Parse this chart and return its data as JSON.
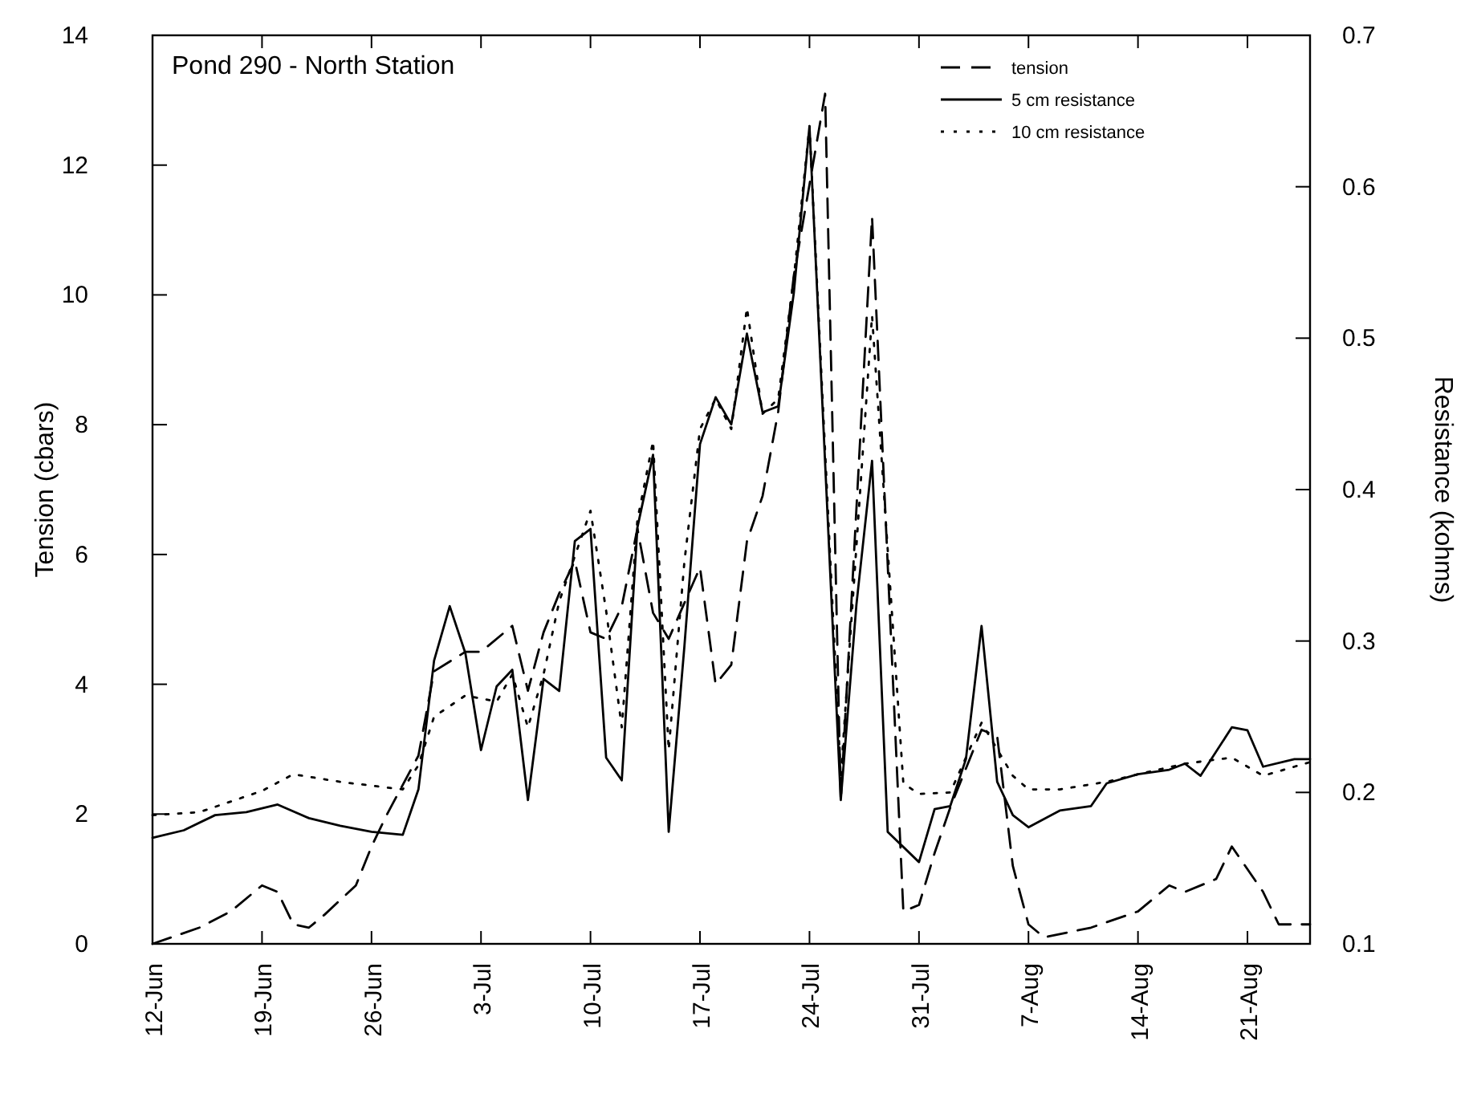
{
  "chart_data": {
    "type": "line",
    "title": "Pond 290 - North Station",
    "ylabel": "Tension (cbars)",
    "y2label": "Resistance (kohms)",
    "xlim": [
      "--06-12",
      "--08-25"
    ],
    "xticks": [
      {
        "value": "--06-12",
        "label": "12-Jun"
      },
      {
        "value": "--06-19",
        "label": "19-Jun"
      },
      {
        "value": "--06-26",
        "label": "26-Jun"
      },
      {
        "value": "--07-03",
        "label": "3-Jul"
      },
      {
        "value": "--07-10",
        "label": "10-Jul"
      },
      {
        "value": "--07-17",
        "label": "17-Jul"
      },
      {
        "value": "--07-24",
        "label": "24-Jul"
      },
      {
        "value": "--07-31",
        "label": "31-Jul"
      },
      {
        "value": "--08-07",
        "label": "7-Aug"
      },
      {
        "value": "--08-14",
        "label": "14-Aug"
      },
      {
        "value": "--08-21",
        "label": "21-Aug"
      }
    ],
    "ylim": [
      0,
      14
    ],
    "yticks": [
      0,
      2,
      4,
      6,
      8,
      10,
      12,
      14
    ],
    "y2lim": [
      0.1,
      0.7
    ],
    "y2ticks": [
      0.1,
      0.2,
      0.3,
      0.4,
      0.5,
      0.6,
      0.7
    ],
    "legend": "top right",
    "grid": false,
    "series": [
      {
        "name": "tension",
        "color": "#000000",
        "line_style": "dashed",
        "x": [
          "--06-12",
          "--06-15",
          "--06-17",
          "--06-19",
          "--06-20",
          "--06-21",
          "--06-22",
          "--06-23",
          "--06-25",
          "--06-26",
          "--06-27",
          "--06-29",
          "--06-30",
          "--07-02",
          "--07-03",
          "--07-05",
          "--07-06",
          "--07-07",
          "--07-08",
          "--07-09",
          "--07-10",
          "--07-11",
          "--07-12",
          "--07-13",
          "--07-14",
          "--07-15",
          "--07-17",
          "--07-18",
          "--07-19",
          "--07-20",
          "--07-21",
          "--07-22",
          "--07-23",
          "--07-25",
          "--07-26",
          "--07-28",
          "--07-30",
          "--07-31",
          "--08-01",
          "--08-02",
          "--08-04",
          "--08-05",
          "--08-06",
          "--08-07",
          "--08-08",
          "--08-09",
          "--08-11",
          "--08-14",
          "--08-16",
          "--08-17",
          "--08-19",
          "--08-20",
          "--08-22",
          "--08-23",
          "--08-25"
        ],
        "values": [
          0,
          0.25,
          0.5,
          0.9,
          0.8,
          0.3,
          0.25,
          0.45,
          0.9,
          1.5,
          2.0,
          2.9,
          4.2,
          4.5,
          4.5,
          4.9,
          3.9,
          4.8,
          5.4,
          5.9,
          4.8,
          4.7,
          5.2,
          6.4,
          5.1,
          4.7,
          5.8,
          4.0,
          4.3,
          6.2,
          6.9,
          8.2,
          10.3,
          13.1,
          2.2,
          11.2,
          0.5,
          0.6,
          1.4,
          2.1,
          3.3,
          3.2,
          1.2,
          0.3,
          0.1,
          0.15,
          0.25,
          0.5,
          0.9,
          0.8,
          1.0,
          1.5,
          0.8,
          0.3,
          0.3
        ]
      },
      {
        "name": "5 cm resistance",
        "color": "#000000",
        "line_style": "solid",
        "axis": "y2",
        "x": [
          "--06-12",
          "--06-14",
          "--06-16",
          "--06-18",
          "--06-20",
          "--06-22",
          "--06-24",
          "--06-26",
          "--06-28",
          "--06-29",
          "--06-30",
          "--07-01",
          "--07-02",
          "--07-03",
          "--07-04",
          "--07-05",
          "--07-06",
          "--07-07",
          "--07-08",
          "--07-09",
          "--07-10",
          "--07-11",
          "--07-12",
          "--07-13",
          "--07-14",
          "--07-15",
          "--07-16",
          "--07-17",
          "--07-18",
          "--07-19",
          "--07-20",
          "--07-21",
          "--07-22",
          "--07-23",
          "--07-24",
          "--07-26",
          "--07-27",
          "--07-28",
          "--07-29",
          "--07-31",
          "--08-01",
          "--08-02",
          "--08-03",
          "--08-04",
          "--08-05",
          "--08-06",
          "--08-07",
          "--08-09",
          "--08-11",
          "--08-12",
          "--08-14",
          "--08-16",
          "--08-17",
          "--08-18",
          "--08-20",
          "--08-21",
          "--08-22",
          "--08-24",
          "--08-25"
        ],
        "values": [
          0.17,
          0.175,
          0.185,
          0.187,
          0.192,
          0.183,
          0.178,
          0.174,
          0.172,
          0.202,
          0.287,
          0.323,
          0.292,
          0.228,
          0.27,
          0.281,
          0.195,
          0.275,
          0.267,
          0.366,
          0.374,
          0.223,
          0.208,
          0.375,
          0.423,
          0.174,
          0.296,
          0.43,
          0.461,
          0.443,
          0.503,
          0.451,
          0.455,
          0.53,
          0.64,
          0.195,
          0.324,
          0.419,
          0.174,
          0.154,
          0.189,
          0.191,
          0.222,
          0.31,
          0.207,
          0.185,
          0.177,
          0.188,
          0.191,
          0.206,
          0.212,
          0.215,
          0.219,
          0.211,
          0.243,
          0.241,
          0.217,
          0.222,
          0.222
        ]
      },
      {
        "name": "10 cm resistance",
        "color": "#000000",
        "line_style": "dotted",
        "axis": "y2",
        "x": [
          "--06-12",
          "--06-15",
          "--06-19",
          "--06-21",
          "--06-24",
          "--06-28",
          "--06-29",
          "--06-30",
          "--07-02",
          "--07-04",
          "--07-05",
          "--07-06",
          "--07-07",
          "--07-08",
          "--07-10",
          "--07-11",
          "--07-12",
          "--07-13",
          "--07-14",
          "--07-15",
          "--07-16",
          "--07-17",
          "--07-18",
          "--07-19",
          "--07-20",
          "--07-21",
          "--07-22",
          "--07-23",
          "--07-24",
          "--07-26",
          "--07-28",
          "--07-30",
          "--07-31",
          "--08-02",
          "--08-04",
          "--08-06",
          "--08-07",
          "--08-09",
          "--08-12",
          "--08-14",
          "--08-17",
          "--08-20",
          "--08-22",
          "--08-24",
          "--08-25"
        ],
        "values": [
          0.185,
          0.187,
          0.201,
          0.212,
          0.207,
          0.202,
          0.218,
          0.25,
          0.264,
          0.26,
          0.278,
          0.243,
          0.278,
          0.326,
          0.386,
          0.32,
          0.243,
          0.38,
          0.432,
          0.228,
          0.352,
          0.44,
          0.46,
          0.44,
          0.52,
          0.45,
          0.46,
          0.54,
          0.64,
          0.21,
          0.515,
          0.206,
          0.199,
          0.2,
          0.246,
          0.211,
          0.202,
          0.202,
          0.207,
          0.212,
          0.219,
          0.223,
          0.211,
          0.217,
          0.22
        ]
      }
    ]
  }
}
